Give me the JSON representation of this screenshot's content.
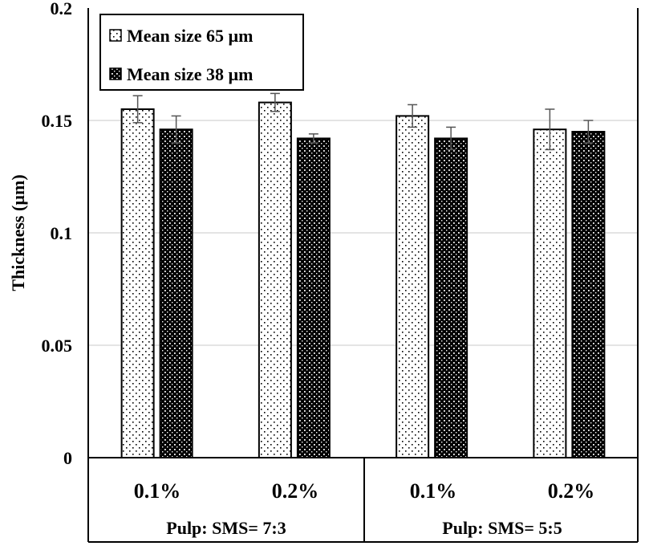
{
  "chart_data": {
    "type": "bar",
    "ylabel": "Thickness (µm)",
    "xlabel": "",
    "ylim": [
      0,
      0.2
    ],
    "yticks": [
      0,
      0.05,
      0.1,
      0.15,
      0.2
    ],
    "ytick_labels": [
      "0",
      "0.05",
      "0.1",
      "0.15",
      "0.2"
    ],
    "grid": true,
    "legend_position": "top-left",
    "categories": [
      "0.1%",
      "0.2%",
      "0.1%",
      "0.2%"
    ],
    "groups": [
      {
        "label": "Pulp: SMS= 7:3",
        "categories": [
          "0.1%",
          "0.2%"
        ]
      },
      {
        "label": "Pulp: SMS= 5:5",
        "categories": [
          "0.1%",
          "0.2%"
        ]
      }
    ],
    "series": [
      {
        "name": "Mean size 65 µm",
        "values": [
          0.155,
          0.158,
          0.152,
          0.146
        ],
        "errors": [
          0.006,
          0.004,
          0.005,
          0.009
        ],
        "pattern": "light-dots",
        "color": "#000000"
      },
      {
        "name": "Mean size 38 µm",
        "values": [
          0.146,
          0.142,
          0.142,
          0.145
        ],
        "errors": [
          0.006,
          0.002,
          0.005,
          0.005
        ],
        "pattern": "dark-dots",
        "color": "#000000"
      }
    ]
  }
}
